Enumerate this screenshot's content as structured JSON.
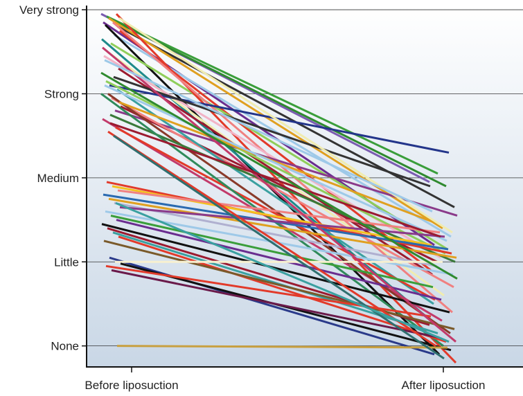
{
  "chart_data": {
    "type": "line",
    "title": "",
    "xlabel": "",
    "ylabel": "",
    "categories": [
      "Before liposuction",
      "After liposuction"
    ],
    "y_levels": [
      "None",
      "Little",
      "Medium",
      "Strong",
      "Very strong"
    ],
    "ylim": [
      -0.25,
      4.05
    ],
    "grid": "horizontal",
    "legend": "none",
    "background_gradient": [
      "#ffffff",
      "#c9d7e6"
    ],
    "series": [
      {
        "values": [
          3.95,
          1.95
        ],
        "color": "#7a5cb0"
      },
      {
        "values": [
          3.92,
          2.05
        ],
        "color": "#3a9e3a"
      },
      {
        "values": [
          3.88,
          1.9
        ],
        "color": "#2f8a2f"
      },
      {
        "values": [
          3.8,
          1.65
        ],
        "color": "#333333"
      },
      {
        "values": [
          3.85,
          1.2
        ],
        "color": "#6a2d8f"
      },
      {
        "values": [
          3.9,
          1.4
        ],
        "color": "#e0a020"
      },
      {
        "values": [
          3.7,
          1.3
        ],
        "color": "#9ec9e8"
      },
      {
        "values": [
          3.75,
          0.9
        ],
        "color": "#e23a2a"
      },
      {
        "values": [
          3.82,
          -0.1
        ],
        "color": "#111111"
      },
      {
        "values": [
          3.6,
          1.15
        ],
        "color": "#8fce5a"
      },
      {
        "values": [
          3.95,
          -0.2
        ],
        "color": "#e23a2a"
      },
      {
        "values": [
          3.65,
          0.25
        ],
        "color": "#1e8a8a"
      },
      {
        "values": [
          3.5,
          0.6
        ],
        "color": "#f0ecb0"
      },
      {
        "values": [
          3.85,
          0.4
        ],
        "color": "#f08080"
      },
      {
        "values": [
          3.3,
          0.85
        ],
        "color": "#9b1b30"
      },
      {
        "values": [
          3.45,
          1.05
        ],
        "color": "#f2b3c6"
      },
      {
        "values": [
          3.1,
          2.3
        ],
        "color": "#23358a"
      },
      {
        "values": [
          2.8,
          1.55
        ],
        "color": "#8a3a8a"
      },
      {
        "values": [
          2.85,
          1.0
        ],
        "color": "#9b1b30"
      },
      {
        "values": [
          3.15,
          1.1
        ],
        "color": "#8fce5a"
      },
      {
        "values": [
          2.95,
          0.7
        ],
        "color": "#f08080"
      },
      {
        "values": [
          3.05,
          0.5
        ],
        "color": "#3aa0a0"
      },
      {
        "values": [
          2.7,
          0.3
        ],
        "color": "#c23a6a"
      },
      {
        "values": [
          3.0,
          0.15
        ],
        "color": "#8a3a2a"
      },
      {
        "values": [
          3.2,
          1.9
        ],
        "color": "#333333"
      },
      {
        "values": [
          2.9,
          1.45
        ],
        "color": "#e0a020"
      },
      {
        "values": [
          3.1,
          1.25
        ],
        "color": "#9ec9e8"
      },
      {
        "values": [
          2.75,
          1.0
        ],
        "color": "#3a7a3a"
      },
      {
        "values": [
          2.6,
          0.55
        ],
        "color": "#e23a2a"
      },
      {
        "values": [
          3.0,
          0.0
        ],
        "color": "#2f8a5a"
      },
      {
        "values": [
          1.95,
          1.1
        ],
        "color": "#e23a2a"
      },
      {
        "values": [
          1.9,
          1.2
        ],
        "color": "#f4c020"
      },
      {
        "values": [
          1.85,
          1.35
        ],
        "color": "#f08080"
      },
      {
        "values": [
          1.8,
          1.15
        ],
        "color": "#2a6ab0"
      },
      {
        "values": [
          1.75,
          1.05
        ],
        "color": "#e0a020"
      },
      {
        "values": [
          1.7,
          0.95
        ],
        "color": "#b0b0d0"
      },
      {
        "values": [
          1.65,
          1.3
        ],
        "color": "#8a3a8a"
      },
      {
        "values": [
          1.6,
          0.85
        ],
        "color": "#9ec9e8"
      },
      {
        "values": [
          1.55,
          0.7
        ],
        "color": "#3a9e3a"
      },
      {
        "values": [
          1.5,
          0.55
        ],
        "color": "#6a2d8f"
      },
      {
        "values": [
          1.45,
          0.4
        ],
        "color": "#111111"
      },
      {
        "values": [
          1.4,
          0.25
        ],
        "color": "#9b1b30"
      },
      {
        "values": [
          1.35,
          0.15
        ],
        "color": "#3aa0a0"
      },
      {
        "values": [
          1.3,
          0.05
        ],
        "color": "#e23a2a"
      },
      {
        "values": [
          1.25,
          0.2
        ],
        "color": "#7a5a2a"
      },
      {
        "values": [
          1.05,
          -0.1
        ],
        "color": "#2a3a8a"
      },
      {
        "values": [
          1.0,
          1.0
        ],
        "color": "#f7f0d0"
      },
      {
        "values": [
          0.98,
          -0.05
        ],
        "color": "#111111"
      },
      {
        "values": [
          0.95,
          0.35
        ],
        "color": "#e23a2a"
      },
      {
        "values": [
          0.9,
          0.1
        ],
        "color": "#6a1a4a"
      },
      {
        "values": [
          0.0,
          -0.02
        ],
        "color": "#c8a040"
      },
      {
        "values": [
          3.55,
          0.05
        ],
        "color": "#c23a6a"
      },
      {
        "values": [
          2.55,
          0.0
        ],
        "color": "#e23a2a"
      },
      {
        "values": [
          2.5,
          -0.15
        ],
        "color": "#2f6f6f"
      },
      {
        "values": [
          3.9,
          1.35
        ],
        "color": "#f0ecb0"
      },
      {
        "values": [
          3.4,
          1.6
        ],
        "color": "#9ec9e8"
      },
      {
        "values": [
          2.65,
          1.3
        ],
        "color": "#9b1b30"
      },
      {
        "values": [
          1.7,
          0.05
        ],
        "color": "#3aa0a0"
      },
      {
        "values": [
          3.25,
          0.8
        ],
        "color": "#2f8a2f"
      }
    ]
  }
}
